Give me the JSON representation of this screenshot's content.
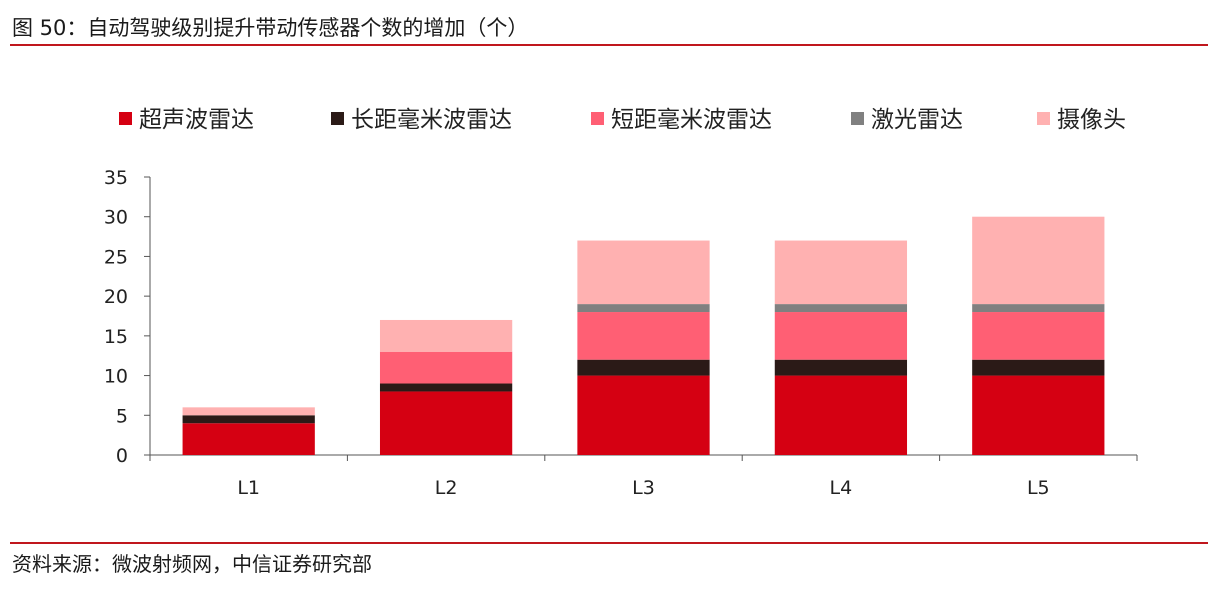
{
  "figure": {
    "title": "图 50：自动驾驶级别提升带动传感器个数的增加（个）",
    "source": "资料来源：微波射频网，中信证券研究部"
  },
  "chart_data": {
    "type": "bar",
    "stacked": true,
    "title": "",
    "xlabel": "",
    "ylabel": "",
    "categories": [
      "L1",
      "L2",
      "L3",
      "L4",
      "L5"
    ],
    "ylim": [
      0,
      35
    ],
    "yticks": [
      0,
      5,
      10,
      15,
      20,
      25,
      30,
      35
    ],
    "grid": false,
    "legend_position": "top",
    "series": [
      {
        "name": "超声波雷达",
        "color": "#d50012",
        "values": [
          4,
          8,
          10,
          10,
          10
        ]
      },
      {
        "name": "长距毫米波雷达",
        "color": "#2b1a17",
        "values": [
          1,
          1,
          2,
          2,
          2
        ]
      },
      {
        "name": "短距毫米波雷达",
        "color": "#ff5f74",
        "values": [
          0,
          4,
          6,
          6,
          6
        ]
      },
      {
        "name": "激光雷达",
        "color": "#808080",
        "values": [
          0,
          0,
          1,
          1,
          1
        ]
      },
      {
        "name": "摄像头",
        "color": "#ffb1b1",
        "values": [
          1,
          4,
          8,
          8,
          11
        ]
      }
    ]
  }
}
